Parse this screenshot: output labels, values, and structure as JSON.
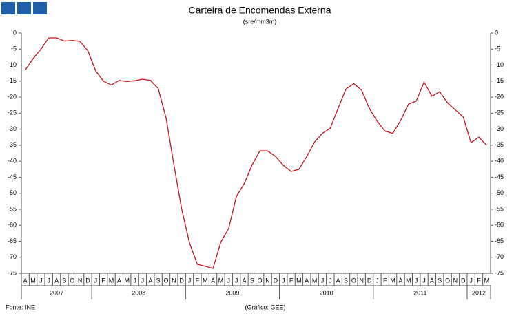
{
  "chart_data": {
    "type": "line",
    "title": "Carteira de Encomendas  Externa",
    "subtitle": "(sre/mm3m)",
    "categories": [
      "A",
      "M",
      "J",
      "J",
      "A",
      "S",
      "O",
      "N",
      "D",
      "J",
      "F",
      "M",
      "A",
      "M",
      "J",
      "J",
      "A",
      "S",
      "O",
      "N",
      "D",
      "J",
      "F",
      "M",
      "A",
      "M",
      "J",
      "J",
      "A",
      "S",
      "O",
      "N",
      "D",
      "J",
      "F",
      "M",
      "A",
      "M",
      "J",
      "J",
      "A",
      "S",
      "O",
      "N",
      "D",
      "J",
      "F",
      "M",
      "A",
      "M",
      "J",
      "J",
      "A",
      "S",
      "O",
      "N",
      "D",
      "J",
      "F",
      "M"
    ],
    "years": [
      "2007",
      "2008",
      "2009",
      "2010",
      "2011",
      "2012"
    ],
    "series": [
      {
        "name": "Carteira de Encomendas Externa",
        "color": "#c0141c",
        "values": [
          -11.5,
          -8,
          -5,
          -1.5,
          -1.5,
          -2.5,
          -2.3,
          -2.6,
          -5.5,
          -11.8,
          -15,
          -16.2,
          -14.8,
          -15.1,
          -14.9,
          -14.4,
          -14.8,
          -17.3,
          -26.5,
          -41,
          -55,
          -65.5,
          -72.2,
          -72.8,
          -73.5,
          -65.3,
          -61,
          -51,
          -47,
          -41.2,
          -36.8,
          -36.8,
          -38.5,
          -41.3,
          -43.2,
          -42.5,
          -38.5,
          -34,
          -31.3,
          -29.7,
          -23.5,
          -17.5,
          -15.8,
          -17.8,
          -23.5,
          -27.5,
          -30.6,
          -31.3,
          -27.3,
          -22.2,
          -21.2,
          -15.3,
          -19.7,
          -18.3,
          -21.8,
          -24,
          -26.2,
          -34.2,
          -32.5,
          -35
        ]
      }
    ],
    "ylim": [
      -75,
      0
    ],
    "yticks": [
      0,
      -5,
      -10,
      -15,
      -20,
      -25,
      -30,
      -35,
      -40,
      -45,
      -50,
      -55,
      -60,
      -65,
      -70,
      -75
    ],
    "y2lim": [
      -75,
      0
    ],
    "y2ticks": [
      0,
      -5,
      -10,
      -15,
      -20,
      -25,
      -30,
      -35,
      -40,
      -45,
      -50,
      -55,
      -60,
      -65,
      -70,
      -75
    ],
    "source": "Fonte: INE",
    "credit": "(Gráfico: GEE)"
  }
}
